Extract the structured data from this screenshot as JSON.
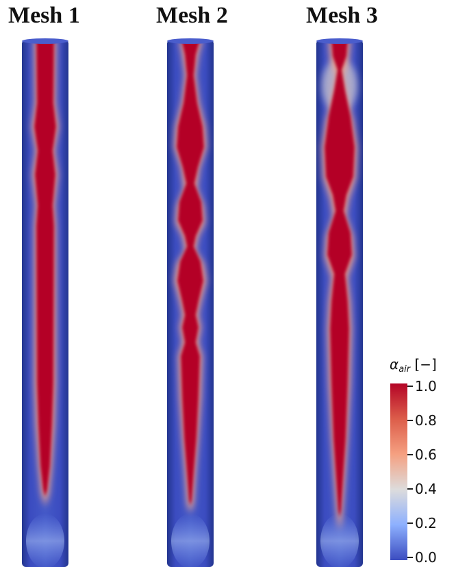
{
  "titles": [
    "Mesh 1",
    "Mesh 2",
    "Mesh 3"
  ],
  "legend": {
    "symbol": "α",
    "subscript": "air",
    "unit": "[−]",
    "ticks": [
      "1.0",
      "0.8",
      "0.6",
      "0.4",
      "0.2",
      "0.0"
    ],
    "colors": [
      "#b40426",
      "#dc5d4a",
      "#f5a081",
      "#dddcdc",
      "#8db0fe",
      "#3b4cc0"
    ]
  },
  "colors": {
    "water": "#3b4cc0",
    "air": "#b40426",
    "interface": "#e8a090"
  }
}
